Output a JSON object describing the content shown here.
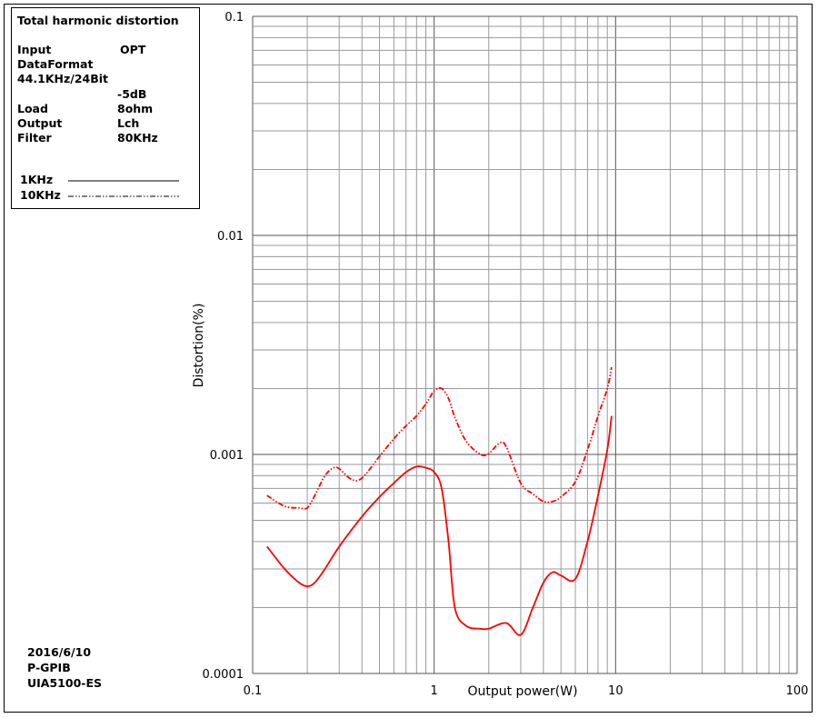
{
  "chart_data": {
    "type": "line",
    "title": "Total harmonic distortion",
    "xlabel": "Output power(W)",
    "ylabel": "Distortion(%)",
    "xscale": "log",
    "yscale": "log",
    "xlim": [
      0.1,
      100
    ],
    "ylim": [
      0.0001,
      0.1
    ],
    "x_tick_labels": [
      "0.1",
      "1",
      "10",
      "100"
    ],
    "y_tick_labels": [
      "0.1",
      "0.01",
      "0.001",
      "0.0001"
    ],
    "grid": true,
    "series": [
      {
        "name": "1KHz",
        "line_style": "solid",
        "color": "#ff0000",
        "x": [
          0.12,
          0.15,
          0.18,
          0.2,
          0.22,
          0.25,
          0.3,
          0.4,
          0.5,
          0.6,
          0.7,
          0.8,
          0.9,
          1.0,
          1.1,
          1.2,
          1.3,
          1.5,
          1.8,
          2.0,
          2.5,
          3.0,
          3.5,
          4.0,
          4.5,
          5.0,
          6.0,
          7.0,
          8.0,
          9.0,
          9.5
        ],
        "values": [
          0.00038,
          0.0003,
          0.00026,
          0.00025,
          0.00026,
          0.0003,
          0.00038,
          0.00052,
          0.00064,
          0.00074,
          0.00083,
          0.00088,
          0.00087,
          0.00083,
          0.0007,
          0.0004,
          0.0002,
          0.000165,
          0.00016,
          0.00016,
          0.00017,
          0.00015,
          0.0002,
          0.00026,
          0.00029,
          0.00028,
          0.00027,
          0.0004,
          0.00065,
          0.00105,
          0.0015
        ]
      },
      {
        "name": "10KHz",
        "line_style": "dash-dot-dot",
        "color": "#ff0000",
        "x": [
          0.12,
          0.15,
          0.18,
          0.2,
          0.22,
          0.25,
          0.28,
          0.3,
          0.35,
          0.4,
          0.5,
          0.6,
          0.7,
          0.8,
          0.9,
          1.0,
          1.1,
          1.2,
          1.3,
          1.5,
          1.8,
          2.0,
          2.3,
          2.5,
          3.0,
          3.5,
          4.0,
          4.5,
          5.0,
          6.0,
          7.0,
          8.0,
          9.0,
          9.5
        ],
        "values": [
          0.00065,
          0.00058,
          0.00057,
          0.00057,
          0.00065,
          0.0008,
          0.00087,
          0.00086,
          0.00077,
          0.00078,
          0.00098,
          0.00118,
          0.00135,
          0.0015,
          0.0017,
          0.00195,
          0.002,
          0.0018,
          0.00148,
          0.00115,
          0.001,
          0.00101,
          0.00113,
          0.00108,
          0.00074,
          0.00066,
          0.00061,
          0.00061,
          0.00064,
          0.00075,
          0.00105,
          0.0015,
          0.002,
          0.0025
        ]
      }
    ]
  },
  "legend": {
    "title": "Total harmonic distortion",
    "rows": [
      {
        "key": "Input",
        "value": "OPT"
      },
      {
        "key": "DataFormat",
        "value": ""
      },
      {
        "key": "44.1KHz/24Bit",
        "value": ""
      },
      {
        "key": "",
        "value": "-5dB"
      },
      {
        "key": "Load",
        "value": "8ohm"
      },
      {
        "key": "Output",
        "value": "Lch"
      },
      {
        "key": "Filter",
        "value": "80KHz"
      }
    ],
    "series_1": "1KHz",
    "series_2": "10KHz"
  },
  "footer": {
    "date": "2016/6/10",
    "interface": "P-GPIB",
    "instrument": "UIA5100-ES"
  }
}
